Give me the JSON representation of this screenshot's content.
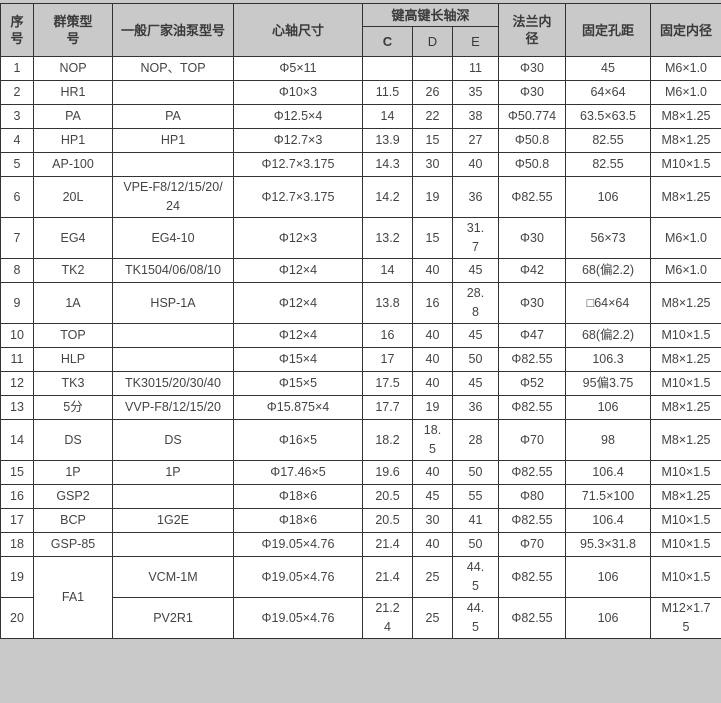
{
  "colors": {
    "header_bg": "#c9c9c9",
    "border": "#333333",
    "text": "#404040",
    "row_bg": "#ffffff"
  },
  "table": {
    "header": {
      "serial": "序\n号",
      "model": "群策型\n号",
      "oem": "一般厂家油泵型号",
      "spindle": "心轴尺寸",
      "key_group": "键高键长轴深",
      "c": "C",
      "d": "D",
      "e": "E",
      "flange": "法兰内\n径",
      "hole": "固定孔距",
      "thread": "固定内径"
    },
    "rows": [
      {
        "no": "1",
        "model": "NOP",
        "oem": "NOP、TOP",
        "spindle": "Φ5×11",
        "c": "",
        "d": "",
        "e": "11",
        "flange": "Φ30",
        "hole": "45",
        "thread": "M6×1.0"
      },
      {
        "no": "2",
        "model": "HR1",
        "oem": "",
        "spindle": "Φ10×3",
        "c": "11.5",
        "d": "26",
        "e": "35",
        "flange": "Φ30",
        "hole": "64×64",
        "thread": "M6×1.0"
      },
      {
        "no": "3",
        "model": "PA",
        "oem": "PA",
        "spindle": "Φ12.5×4",
        "c": "14",
        "d": "22",
        "e": "38",
        "flange": "Φ50.774",
        "hole": "63.5×63.5",
        "thread": "M8×1.25"
      },
      {
        "no": "4",
        "model": "HP1",
        "oem": "HP1",
        "spindle": "Φ12.7×3",
        "c": "13.9",
        "d": "15",
        "e": "27",
        "flange": "Φ50.8",
        "hole": "82.55",
        "thread": "M8×1.25"
      },
      {
        "no": "5",
        "model": "AP-100",
        "oem": "",
        "spindle": "Φ12.7×3.175",
        "c": "14.3",
        "d": "30",
        "e": "40",
        "flange": "Φ50.8",
        "hole": "82.55",
        "thread": "M10×1.5"
      },
      {
        "no": "6",
        "model": "20L",
        "oem": "VPE-F8/12/15/20/\n24",
        "spindle": "Φ12.7×3.175",
        "c": "14.2",
        "d": "19",
        "e": "36",
        "flange": "Φ82.55",
        "hole": "106",
        "thread": "M8×1.25"
      },
      {
        "no": "7",
        "model": "EG4",
        "oem": "EG4-10",
        "spindle": "Φ12×3",
        "c": "13.2",
        "d": "15",
        "e": "31.\n7",
        "flange": "Φ30",
        "hole": "56×73",
        "thread": "M6×1.0"
      },
      {
        "no": "8",
        "model": "TK2",
        "oem": "TK1504/06/08/10",
        "spindle": "Φ12×4",
        "c": "14",
        "d": "40",
        "e": "45",
        "flange": "Φ42",
        "hole": "68(偏2.2)",
        "thread": "M6×1.0"
      },
      {
        "no": "9",
        "model": "1A",
        "oem": "HSP-1A",
        "spindle": "Φ12×4",
        "c": "13.8",
        "d": "16",
        "e": "28.\n8",
        "flange": "Φ30",
        "hole": "□64×64",
        "thread": "M8×1.25"
      },
      {
        "no": "10",
        "model": "TOP",
        "oem": "",
        "spindle": "Φ12×4",
        "c": "16",
        "d": "40",
        "e": "45",
        "flange": "Φ47",
        "hole": "68(偏2.2)",
        "thread": "M10×1.5"
      },
      {
        "no": "11",
        "model": "HLP",
        "oem": "",
        "spindle": "Φ15×4",
        "c": "17",
        "d": "40",
        "e": "50",
        "flange": "Φ82.55",
        "hole": "106.3",
        "thread": "M8×1.25"
      },
      {
        "no": "12",
        "model": "TK3",
        "oem": "TK3015/20/30/40",
        "spindle": "Φ15×5",
        "c": "17.5",
        "d": "40",
        "e": "45",
        "flange": "Φ52",
        "hole": "95偏3.75",
        "thread": "M10×1.5"
      },
      {
        "no": "13",
        "model": "5分",
        "oem": "VVP-F8/12/15/20",
        "spindle": "Φ15.875×4",
        "c": "17.7",
        "d": "19",
        "e": "36",
        "flange": "Φ82.55",
        "hole": "106",
        "thread": "M8×1.25"
      },
      {
        "no": "14",
        "model": "DS",
        "oem": "DS",
        "spindle": "Φ16×5",
        "c": "18.2",
        "d": "18.\n5",
        "e": "28",
        "flange": "Φ70",
        "hole": "98",
        "thread": "M8×1.25"
      },
      {
        "no": "15",
        "model": "1P",
        "oem": "1P",
        "spindle": "Φ17.46×5",
        "c": "19.6",
        "d": "40",
        "e": "50",
        "flange": "Φ82.55",
        "hole": "106.4",
        "thread": "M10×1.5"
      },
      {
        "no": "16",
        "model": "GSP2",
        "oem": "",
        "spindle": "Φ18×6",
        "c": "20.5",
        "d": "45",
        "e": "55",
        "flange": "Φ80",
        "hole": "71.5×100",
        "thread": "M8×1.25"
      },
      {
        "no": "17",
        "model": "BCP",
        "oem": "1G2E",
        "spindle": "Φ18×6",
        "c": "20.5",
        "d": "30",
        "e": "41",
        "flange": "Φ82.55",
        "hole": "106.4",
        "thread": "M10×1.5"
      },
      {
        "no": "18",
        "model": "GSP-85",
        "oem": "",
        "spindle": "Φ19.05×4.76",
        "c": "21.4",
        "d": "40",
        "e": "50",
        "flange": "Φ70",
        "hole": "95.3×31.8",
        "thread": "M10×1.5"
      },
      {
        "no": "19",
        "model": "FA1",
        "model_rowspan": 2,
        "oem": "VCM-1M",
        "spindle": "Φ19.05×4.76",
        "c": "21.4",
        "d": "25",
        "e": "44.\n5",
        "flange": "Φ82.55",
        "hole": "106",
        "thread": "M10×1.5"
      },
      {
        "no": "20",
        "model_skip": true,
        "oem": "PV2R1",
        "spindle": "Φ19.05×4.76",
        "c": "21.2\n4",
        "d": "25",
        "e": "44.\n5",
        "flange": "Φ82.55",
        "hole": "106",
        "thread": "M12×1.7\n5"
      }
    ]
  }
}
